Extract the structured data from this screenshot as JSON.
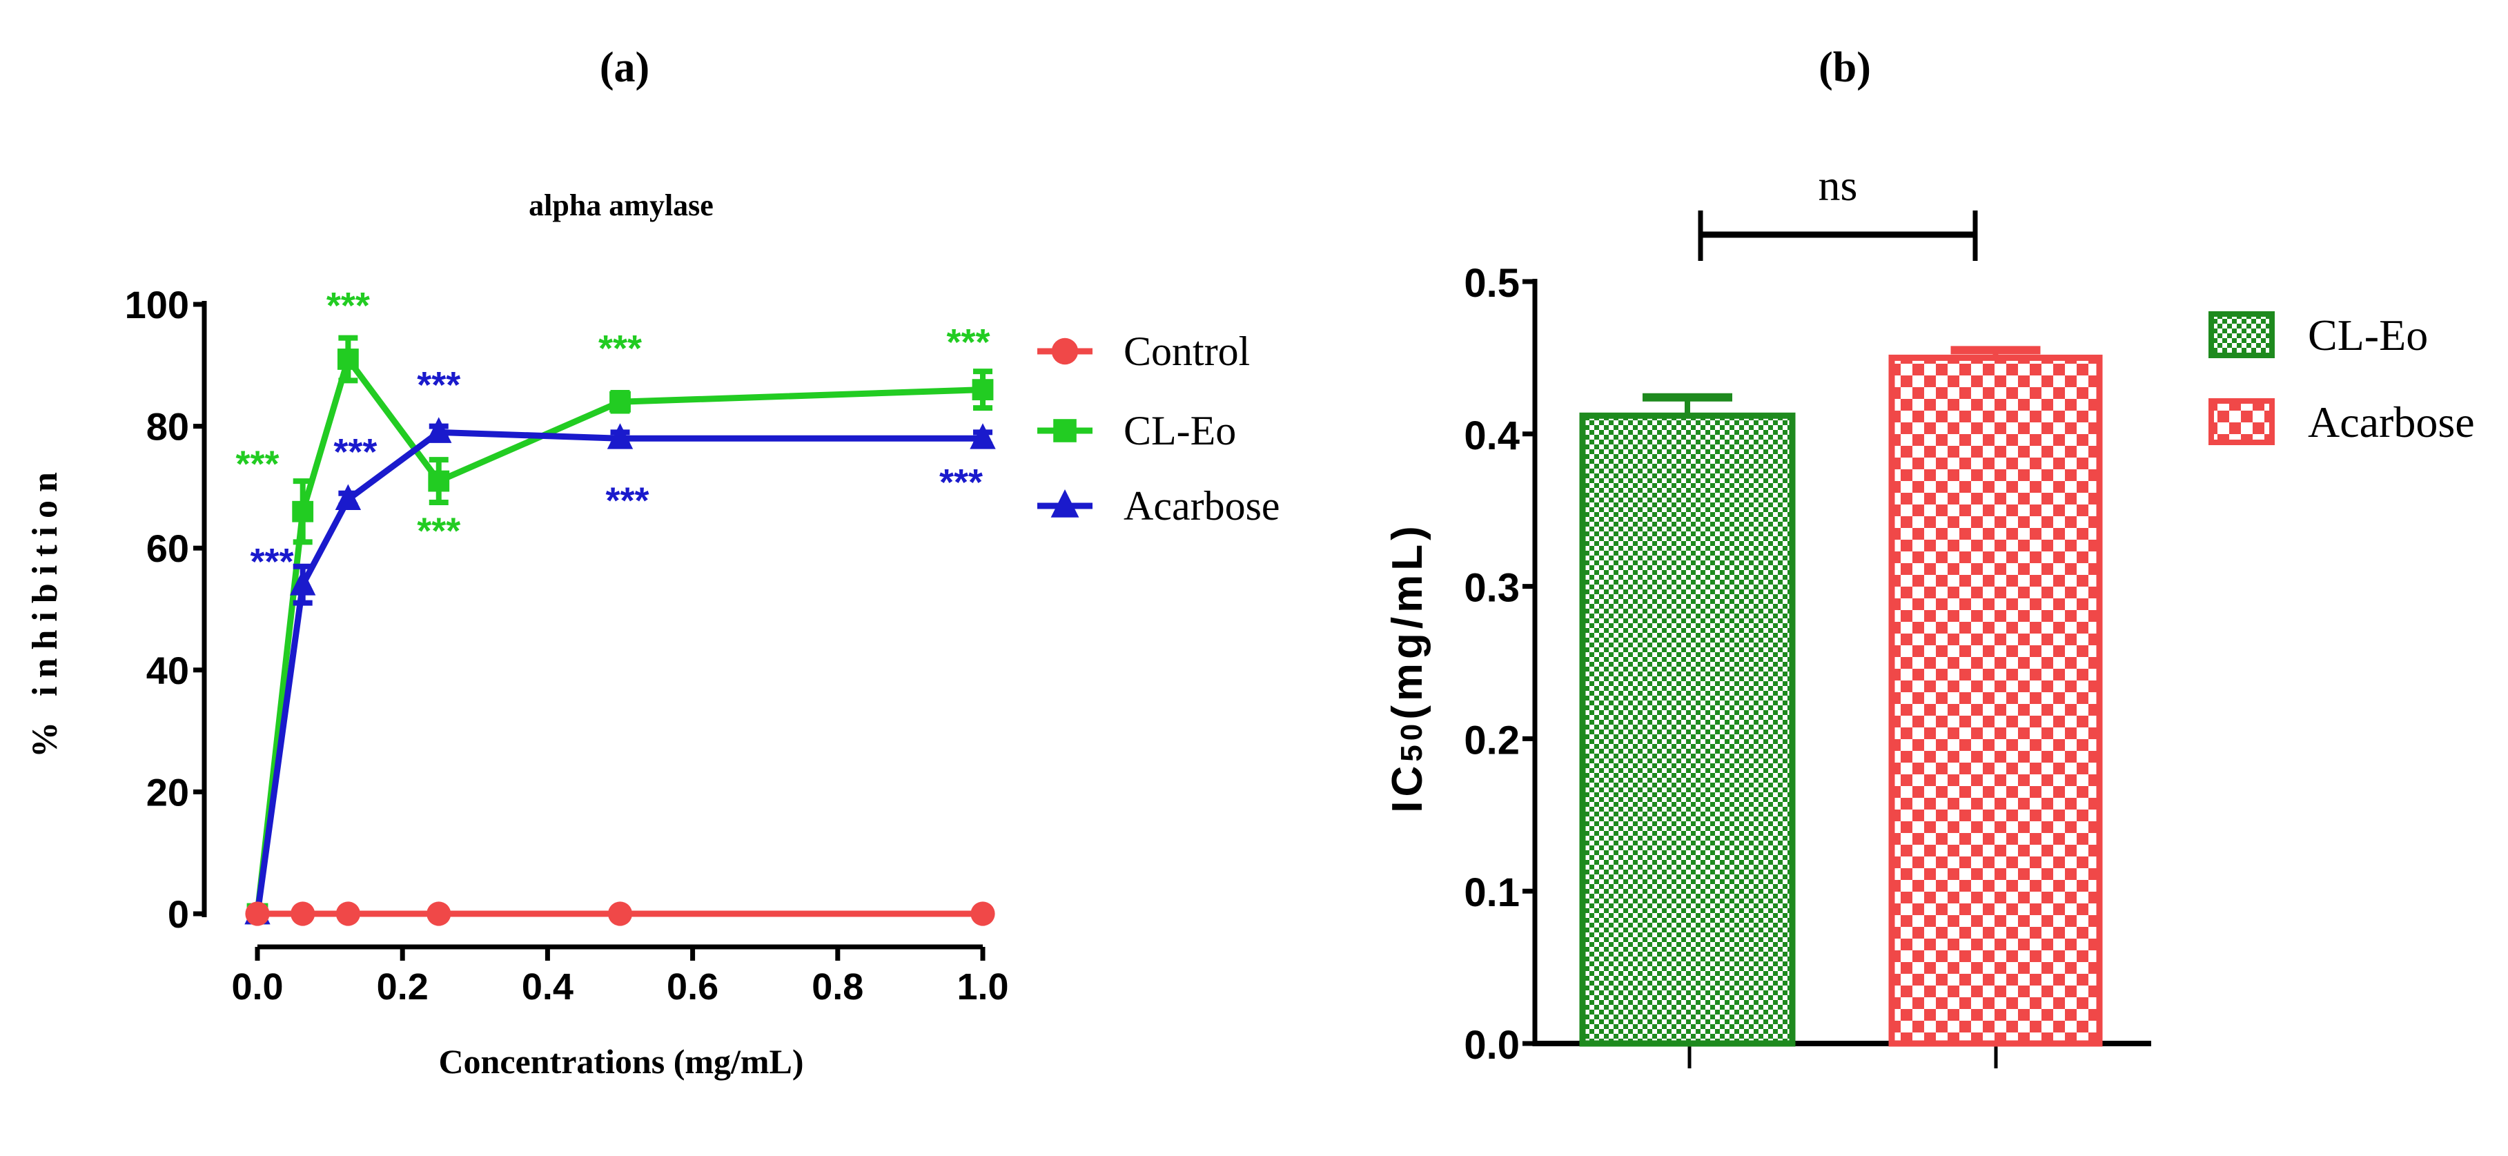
{
  "chart_data": [
    {
      "type": "line",
      "panel_label": "(a)",
      "title": "alpha amylase",
      "xlabel": "Concentrations (mg/mL)",
      "ylabel": "% inhibition",
      "xlim": [
        0,
        1.0
      ],
      "ylim": [
        0,
        100
      ],
      "xticks": [
        "0.0",
        "0.2",
        "0.4",
        "0.6",
        "0.8",
        "1.0"
      ],
      "yticks": [
        "0",
        "20",
        "40",
        "60",
        "80",
        "100"
      ],
      "x": [
        0,
        0.0625,
        0.125,
        0.25,
        0.5,
        1.0
      ],
      "legend_position": "right",
      "series": [
        {
          "name": "Control",
          "color": "#f04848",
          "marker": "circle",
          "values": [
            0,
            0,
            0,
            0,
            0,
            0
          ],
          "errors": [
            0,
            0,
            0,
            0,
            0,
            0
          ]
        },
        {
          "name": "CL-Eo",
          "color": "#22cc22",
          "marker": "square",
          "values": [
            0,
            66,
            91,
            71,
            84,
            86
          ],
          "errors": [
            0,
            5,
            3.5,
            3.5,
            1.5,
            3
          ]
        },
        {
          "name": "Acarbose",
          "color": "#1a1acc",
          "marker": "triangle",
          "values": [
            0,
            54,
            68,
            79,
            78,
            78
          ],
          "errors": [
            0,
            3,
            1,
            1,
            1,
            1
          ]
        }
      ],
      "annotations": [
        {
          "text": "***",
          "color": "#22cc22",
          "x": 0.0,
          "y": 74
        },
        {
          "text": "***",
          "color": "#22cc22",
          "x": 0.125,
          "y": 100
        },
        {
          "text": "***",
          "color": "#22cc22",
          "x": 0.25,
          "y": 63
        },
        {
          "text": "***",
          "color": "#22cc22",
          "x": 0.5,
          "y": 93
        },
        {
          "text": "***",
          "color": "#22cc22",
          "x": 0.98,
          "y": 94
        },
        {
          "text": "***",
          "color": "#1a1acc",
          "x": 0.02,
          "y": 58
        },
        {
          "text": "***",
          "color": "#1a1acc",
          "x": 0.135,
          "y": 76
        },
        {
          "text": "***",
          "color": "#1a1acc",
          "x": 0.25,
          "y": 87
        },
        {
          "text": "***",
          "color": "#1a1acc",
          "x": 0.51,
          "y": 68
        },
        {
          "text": "***",
          "color": "#1a1acc",
          "x": 0.97,
          "y": 71
        }
      ]
    },
    {
      "type": "bar",
      "panel_label": "(b)",
      "ylabel_main": "IC",
      "ylabel_sub": "50",
      "ylabel_rest": "(mg/mL)",
      "ylim": [
        0,
        0.5
      ],
      "yticks": [
        "0.0",
        "0.1",
        "0.2",
        "0.3",
        "0.4",
        "0.5"
      ],
      "categories": [
        "CL-Eo",
        "Acarbose"
      ],
      "values": [
        0.412,
        0.45
      ],
      "errors": [
        0.012,
        0.005
      ],
      "colors": [
        "#1e8a1e",
        "#f04848"
      ],
      "legend_position": "right",
      "significance": {
        "text": "ns",
        "between": [
          "CL-Eo",
          "Acarbose"
        ]
      }
    }
  ]
}
